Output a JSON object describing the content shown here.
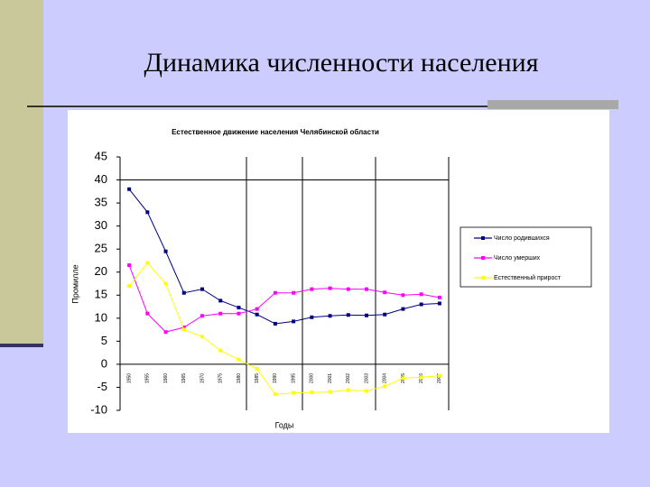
{
  "slide_title": "Динамика численности населения",
  "chart_data": {
    "type": "line",
    "title": "Естественное движение населения Челябинской области",
    "y_label": "Промилле",
    "x_label": "Годы",
    "categories": [
      "1950",
      "1955",
      "1960",
      "1965",
      "1970",
      "1975",
      "1980",
      "1985",
      "1990",
      "1995",
      "2000",
      "2001",
      "2002",
      "2003",
      "2004",
      "2005",
      "2006",
      "2007"
    ],
    "series": [
      {
        "name": "Число родившихся",
        "color": "#000080",
        "values": [
          38,
          33,
          24.5,
          15.5,
          16.3,
          13.8,
          12.3,
          10.8,
          8.8,
          9.3,
          10.2,
          10.5,
          10.7,
          10.6,
          10.8,
          12,
          13,
          13.2
        ]
      },
      {
        "name": "Число умерших",
        "color": "#ff00ff",
        "values": [
          21.5,
          11,
          7,
          8,
          10.5,
          11,
          11,
          12,
          15.5,
          15.5,
          16.3,
          16.5,
          16.3,
          16.3,
          15.6,
          15,
          15.2,
          14.5
        ]
      },
      {
        "name": "Естественный прирост",
        "color": "#ffff00",
        "values": [
          17,
          22,
          17.5,
          7.5,
          6,
          3,
          1,
          -1,
          -6.5,
          -6.2,
          -6.1,
          -6,
          -5.6,
          -5.8,
          -4.8,
          -3,
          -2.8,
          -2.5
        ]
      }
    ],
    "ylim": [
      -10,
      45
    ],
    "yticks": [
      -10,
      -5,
      0,
      5,
      10,
      15,
      20,
      25,
      30,
      35,
      40,
      45
    ],
    "legend": "right"
  }
}
